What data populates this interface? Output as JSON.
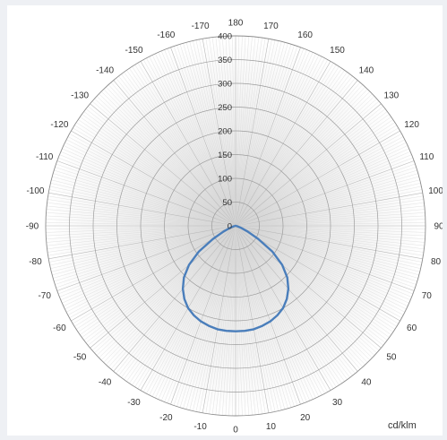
{
  "chart_data": {
    "type": "polar",
    "unit_label": "cd/klm",
    "radial_ticks": [
      0,
      50,
      100,
      150,
      200,
      250,
      300,
      350,
      400
    ],
    "rlim": [
      0,
      400
    ],
    "angle_tick_step": 10,
    "angle_tick_labels": [
      "180",
      "170",
      "160",
      "150",
      "140",
      "130",
      "120",
      "110",
      "100",
      "90",
      "80",
      "70",
      "60",
      "50",
      "40",
      "30",
      "20",
      "10",
      "0",
      "-10",
      "-20",
      "-30",
      "-40",
      "-50",
      "-60",
      "-70",
      "-80",
      "-90",
      "-100",
      "-110",
      "-120",
      "-130",
      "-140",
      "-150",
      "-160",
      "-170"
    ],
    "grid": true,
    "series": [
      {
        "color": "#4a7ebb",
        "points": [
          {
            "angle": -90,
            "value": 0
          },
          {
            "angle": -80,
            "value": 1
          },
          {
            "angle": -75,
            "value": 4
          },
          {
            "angle": -70,
            "value": 12
          },
          {
            "angle": -65,
            "value": 28
          },
          {
            "angle": -60,
            "value": 55
          },
          {
            "angle": -55,
            "value": 95
          },
          {
            "angle": -50,
            "value": 128
          },
          {
            "angle": -45,
            "value": 154
          },
          {
            "angle": -40,
            "value": 173
          },
          {
            "angle": -35,
            "value": 188
          },
          {
            "angle": -30,
            "value": 200
          },
          {
            "angle": -25,
            "value": 208
          },
          {
            "angle": -20,
            "value": 214
          },
          {
            "angle": -15,
            "value": 218
          },
          {
            "angle": -10,
            "value": 221
          },
          {
            "angle": -5,
            "value": 222
          },
          {
            "angle": 0,
            "value": 222
          },
          {
            "angle": 5,
            "value": 222
          },
          {
            "angle": 10,
            "value": 221
          },
          {
            "angle": 15,
            "value": 218
          },
          {
            "angle": 20,
            "value": 214
          },
          {
            "angle": 25,
            "value": 208
          },
          {
            "angle": 30,
            "value": 200
          },
          {
            "angle": 35,
            "value": 188
          },
          {
            "angle": 40,
            "value": 173
          },
          {
            "angle": 45,
            "value": 154
          },
          {
            "angle": 50,
            "value": 128
          },
          {
            "angle": 55,
            "value": 95
          },
          {
            "angle": 60,
            "value": 55
          },
          {
            "angle": 65,
            "value": 28
          },
          {
            "angle": 70,
            "value": 12
          },
          {
            "angle": 75,
            "value": 4
          },
          {
            "angle": 80,
            "value": 1
          },
          {
            "angle": 90,
            "value": 0
          }
        ]
      }
    ]
  }
}
